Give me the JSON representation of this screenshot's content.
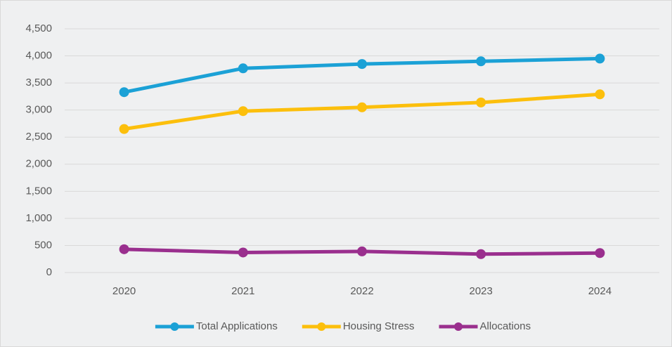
{
  "chart_data": {
    "type": "line",
    "categories": [
      "2020",
      "2021",
      "2022",
      "2023",
      "2024"
    ],
    "series": [
      {
        "name": "Total Applications",
        "color": "#1ba1d6",
        "values": [
          3330,
          3770,
          3850,
          3900,
          3950
        ]
      },
      {
        "name": "Housing Stress",
        "color": "#fcbf0c",
        "values": [
          2650,
          2980,
          3050,
          3140,
          3290
        ]
      },
      {
        "name": "Allocations",
        "color": "#9a2f8e",
        "values": [
          430,
          370,
          390,
          340,
          360
        ]
      }
    ],
    "ylim": [
      0,
      4500
    ],
    "yticks": [
      0,
      500,
      {
        "value": 1000,
        "label": "1,000"
      },
      {
        "value": 1500,
        "label": "1,500"
      },
      {
        "value": 2000,
        "label": "2,000"
      },
      {
        "value": 2500,
        "label": "2,500"
      },
      {
        "value": 3000,
        "label": "3,000"
      },
      {
        "value": 3500,
        "label": "3,500"
      },
      {
        "value": 4000,
        "label": "4,000"
      },
      {
        "value": 4500,
        "label": "4,500"
      }
    ],
    "grid": true,
    "legend": "bottom"
  }
}
